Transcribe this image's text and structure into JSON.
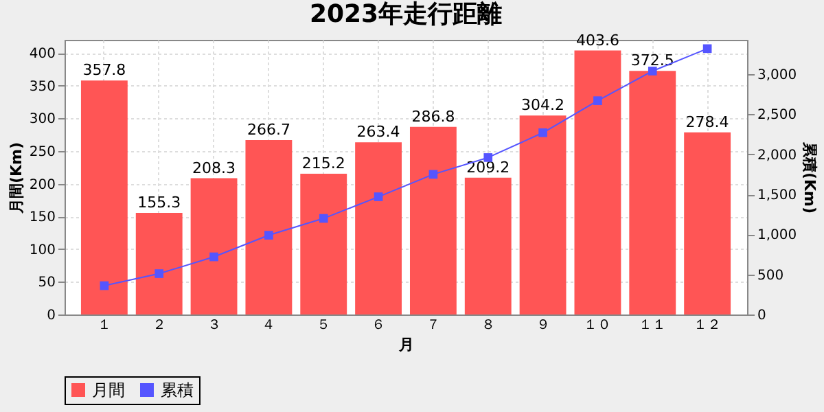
{
  "chart_data": {
    "type": "bar",
    "title": "2023年走行距離",
    "xlabel": "月",
    "ylabel": "月間(Km)",
    "y2label": "累積(Km)",
    "categories": [
      "１",
      "２",
      "３",
      "４",
      "５",
      "６",
      "７",
      "８",
      "９",
      "１０",
      "１１",
      "１２"
    ],
    "series": [
      {
        "name": "月間",
        "color": "#ff5555",
        "values": [
          357.8,
          155.3,
          208.3,
          266.7,
          215.2,
          263.4,
          286.8,
          209.2,
          304.2,
          403.6,
          372.5,
          278.4
        ],
        "value_labels": [
          "357.8",
          "155.3",
          "208.3",
          "266.7",
          "215.2",
          "263.4",
          "286.8",
          "209.2",
          "304.2",
          "403.6",
          "372.5",
          "278.4"
        ]
      },
      {
        "name": "累積",
        "type": "line",
        "axis": "y2",
        "color": "#5555ff",
        "marker": "square",
        "values": [
          360,
          510,
          720,
          990,
          1200,
          1470,
          1750,
          1960,
          2270,
          2670,
          3040,
          3320
        ]
      }
    ],
    "ylim": [
      0,
      420
    ],
    "yticks": [
      0,
      50,
      100,
      150,
      200,
      250,
      300,
      350,
      400
    ],
    "y2lim": [
      0,
      3430
    ],
    "y2ticks": [
      0,
      500,
      {
        "value": 1000,
        "label": "1,000"
      },
      {
        "value": 1500,
        "label": "1,500"
      },
      {
        "value": 2000,
        "label": "2,000"
      },
      {
        "value": 2500,
        "label": "2,500"
      },
      {
        "value": 3000,
        "label": "3,000"
      }
    ],
    "grid": true,
    "legend": "bottom"
  }
}
